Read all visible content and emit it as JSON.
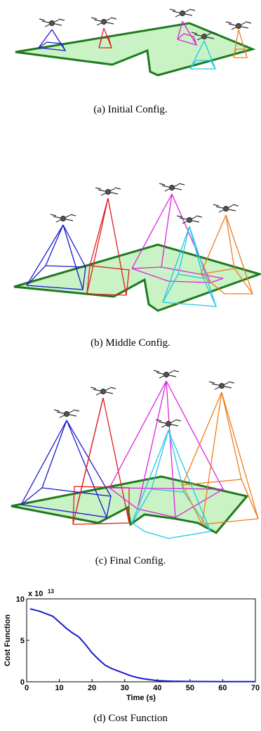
{
  "captions": {
    "a": "(a) Initial Config.",
    "b": "(b) Middle Config.",
    "c": "(c) Final Config.",
    "d": "(d) Cost Function"
  },
  "colors": {
    "region_fill": "#c9f2c5",
    "region_edge": "#1f7a1f",
    "drone_1": "#1a1acc",
    "drone_2": "#e01e1e",
    "drone_3": "#e020e0",
    "drone_4": "#20c6e6",
    "drone_5": "#f07c1a"
  },
  "chart_data": {
    "type": "line",
    "title": "",
    "xlabel": "Time (s)",
    "ylabel": "Cost Function",
    "y_multiplier": "x 10^13",
    "xlim": [
      0,
      70
    ],
    "ylim": [
      0,
      10
    ],
    "xticks": [
      0,
      10,
      20,
      30,
      40,
      50,
      60,
      70
    ],
    "yticks": [
      0,
      5,
      10
    ],
    "series": [
      {
        "x": [
          1,
          2,
          4,
          6,
          8,
          10,
          12,
          14,
          16,
          18,
          20,
          22,
          24,
          26,
          28,
          30,
          32,
          34,
          36,
          38,
          40,
          42,
          45,
          50,
          55,
          60,
          65,
          70
        ],
        "values": [
          8.8,
          8.7,
          8.5,
          8.2,
          7.9,
          7.2,
          6.5,
          5.9,
          5.4,
          4.5,
          3.5,
          2.7,
          2.0,
          1.6,
          1.3,
          1.0,
          0.7,
          0.5,
          0.35,
          0.25,
          0.15,
          0.1,
          0.07,
          0.04,
          0.03,
          0.02,
          0.02,
          0.02
        ]
      }
    ],
    "color": "#1a1acc",
    "grid": false
  }
}
